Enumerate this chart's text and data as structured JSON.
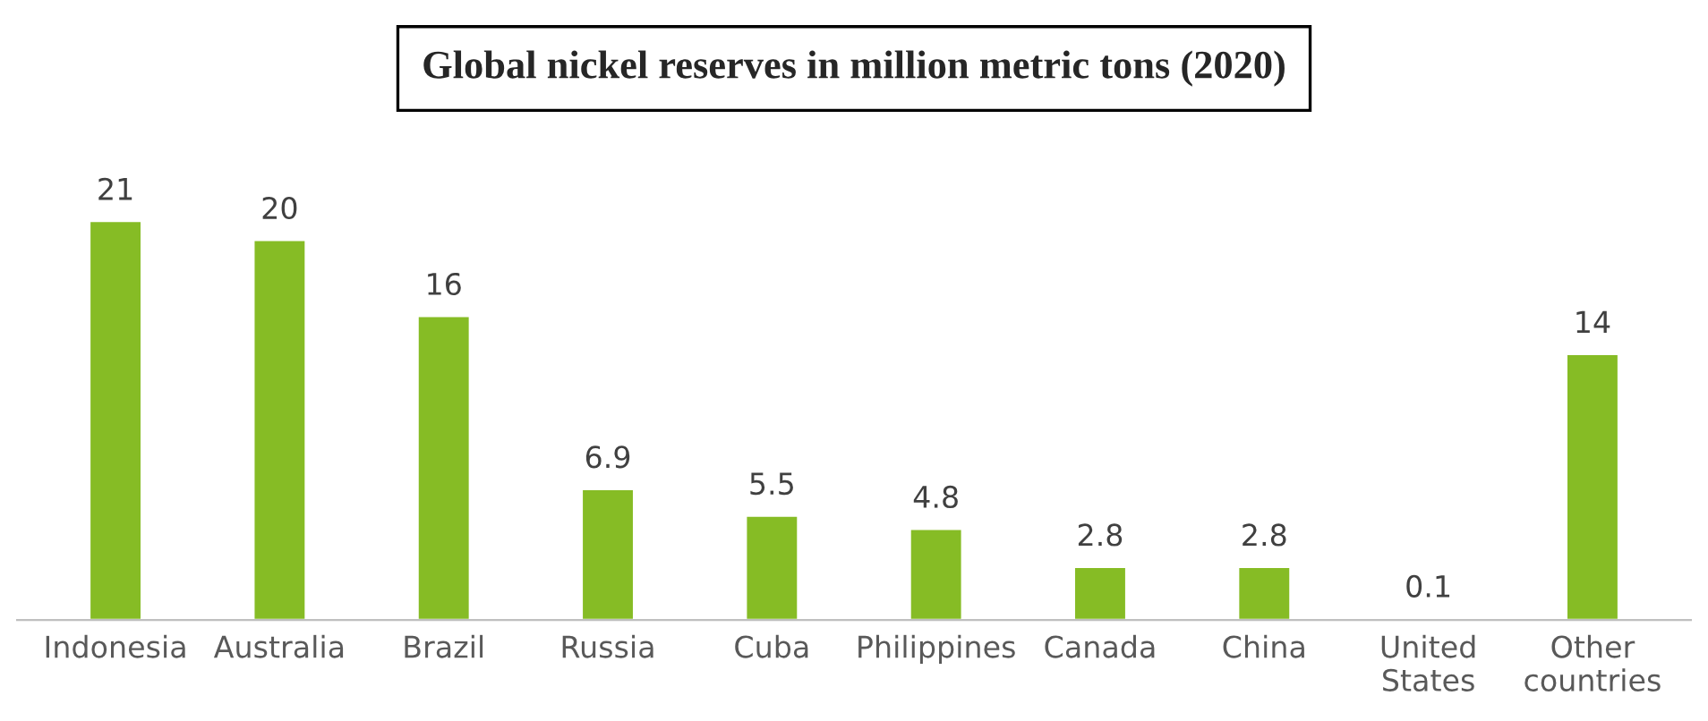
{
  "chart_data": {
    "type": "bar",
    "title": "Global nickel reserves in million metric tons (2020)",
    "categories": [
      "Indonesia",
      "Australia",
      "Brazil",
      "Russia",
      "Cuba",
      "Philippines",
      "Canada",
      "China",
      "United\nStates",
      "Other\ncountries"
    ],
    "values": [
      21,
      20,
      16,
      6.9,
      5.5,
      4.8,
      2.8,
      2.8,
      0.1,
      14
    ],
    "color": "#86bc25",
    "data_labels": true,
    "grid": false,
    "legend": false
  }
}
